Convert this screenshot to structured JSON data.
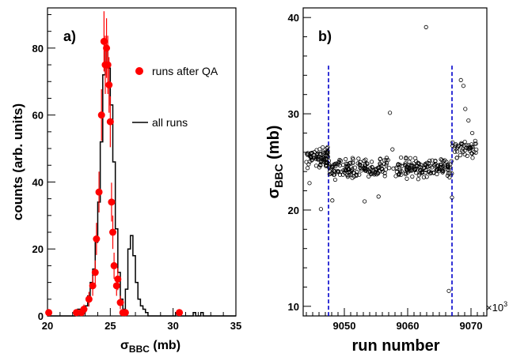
{
  "chart_data": [
    {
      "panel_label": "a)",
      "type": "histogram",
      "xlabel": "σBBC (mb)",
      "xlabel_main": "σ",
      "xlabel_sub": "BBC",
      "xlabel_unit": " (mb)",
      "ylabel": "counts (arb. units)",
      "xlim": [
        20,
        35
      ],
      "ylim": [
        0,
        92
      ],
      "x_ticks": [
        "20",
        "25",
        "30",
        "35"
      ],
      "y_ticks": [
        "0",
        "20",
        "40",
        "60",
        "80"
      ],
      "grid": false,
      "legend_position": "top-right",
      "series": [
        {
          "name": "all runs",
          "style": "step",
          "color": "#000000",
          "bin_width": 0.2,
          "bin_edges_start": 20.0,
          "values": [
            0,
            0,
            0,
            0,
            0,
            0,
            0,
            0,
            0,
            0,
            0,
            1,
            2,
            2,
            1,
            3,
            6,
            10,
            14,
            22,
            34,
            52,
            72,
            80,
            74,
            63,
            46,
            26,
            13,
            5,
            2,
            8,
            20,
            24,
            18,
            10,
            5,
            3,
            2,
            1,
            0,
            0,
            0,
            0,
            0,
            0,
            0,
            0,
            0,
            0,
            0,
            1,
            0,
            0,
            0,
            0,
            0,
            0,
            1,
            0,
            0,
            1,
            0,
            0,
            0,
            0,
            0,
            0,
            0,
            0,
            0,
            0,
            0,
            0,
            0
          ]
        },
        {
          "name": "runs after QA",
          "style": "markers",
          "color": "#ff0000",
          "x": [
            20.1,
            22.3,
            22.7,
            22.9,
            23.3,
            23.6,
            23.8,
            23.9,
            24.1,
            24.3,
            24.5,
            24.6,
            24.7,
            24.8,
            24.9,
            25.0,
            25.1,
            25.2,
            25.3,
            25.5,
            25.6,
            25.8,
            26.0,
            26.2,
            30.5
          ],
          "y": [
            1,
            1,
            1,
            2,
            5,
            9,
            13,
            23,
            37,
            60,
            82,
            75,
            80,
            75,
            69,
            58,
            34,
            25,
            15,
            9,
            11,
            4,
            1,
            1,
            1
          ],
          "yerr": [
            1,
            1,
            1,
            1.4,
            2.2,
            3,
            3.6,
            4.8,
            6.1,
            7.7,
            9,
            8.7,
            8.9,
            8.7,
            8.3,
            7.6,
            5.8,
            5,
            3.9,
            3,
            3.3,
            2,
            1,
            1,
            1
          ]
        }
      ]
    },
    {
      "panel_label": "b)",
      "type": "scatter",
      "xlabel": "run number",
      "ylabel": "σBBC (mb)",
      "ylabel_main": "σ",
      "ylabel_sub": "BBC",
      "ylabel_unit": " (mb)",
      "xlim": [
        9043.5,
        9072.5
      ],
      "ylim": [
        9,
        41
      ],
      "x_ticks": [
        "9050",
        "9060",
        "9070"
      ],
      "y_ticks": [
        "10",
        "20",
        "30",
        "40"
      ],
      "x_multiplier_label": "×10",
      "x_multiplier_exp": "3",
      "grid": false,
      "marker": "open-circle",
      "vertical_lines": [
        9047.5,
        9067.0
      ],
      "vertical_line_color": "#0000cc",
      "outliers": {
        "x": [
          9044.5,
          9046.3,
          9048.1,
          9053.2,
          9055.4,
          9057.2,
          9057.6,
          9062.9,
          9066.5,
          9067.0,
          9068.4,
          9068.8,
          9069.1,
          9069.6,
          9070.2
        ],
        "y": [
          22.8,
          20.1,
          21.0,
          20.9,
          21.4,
          30.1,
          26.3,
          39.0,
          11.6,
          21.3,
          33.5,
          32.9,
          30.5,
          29.3,
          28.0
        ]
      },
      "main_band": {
        "x_start": 9044.0,
        "x_end": 9071.0,
        "count": 420,
        "before_line_mean": 25.5,
        "middle_mean": 24.4,
        "after_line_mean": 26.4,
        "spread": 0.8
      }
    }
  ]
}
